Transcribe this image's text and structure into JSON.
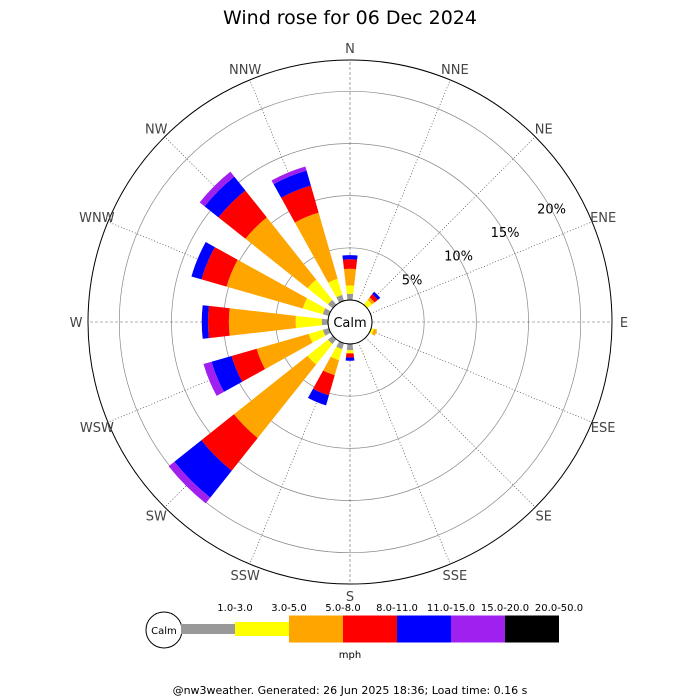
{
  "chart_data": {
    "type": "wind-rose",
    "title": "Wind rose for 06 Dec 2024",
    "directions": [
      "N",
      "NNE",
      "NE",
      "ENE",
      "E",
      "ESE",
      "SE",
      "SSE",
      "S",
      "SSW",
      "SW",
      "WSW",
      "W",
      "WNW",
      "NW",
      "NNW"
    ],
    "ring_labels": [
      "5%",
      "10%",
      "15%",
      "20%"
    ],
    "rings": [
      5,
      10,
      15,
      20
    ],
    "r_max": 23,
    "calm_label": "Calm",
    "units": "mph",
    "speed_bins": [
      {
        "label": "1.0-3.0",
        "color": "#999999"
      },
      {
        "label": "3.0-5.0",
        "color": "#ffff00"
      },
      {
        "label": "5.0-8.0",
        "color": "#ffa500"
      },
      {
        "label": "8.0-11.0",
        "color": "#ff0000"
      },
      {
        "label": "11.0-15.0",
        "color": "#0000ff"
      },
      {
        "label": "15.0-20.0",
        "color": "#a020f0"
      },
      {
        "label": "20.0-50.0",
        "color": "#000000"
      }
    ],
    "series": {
      "N": [
        0.6,
        0.8,
        1.6,
        0.9,
        0.4,
        0.0,
        0.0
      ],
      "NNE": [
        0.0,
        0.0,
        0.0,
        0.0,
        0.0,
        0.0,
        0.0
      ],
      "NE": [
        0.0,
        0.6,
        0.3,
        0.4,
        0.3,
        0.0,
        0.0
      ],
      "ENE": [
        0.0,
        0.0,
        0.0,
        0.0,
        0.0,
        0.0,
        0.0
      ],
      "E": [
        0.0,
        0.0,
        0.0,
        0.0,
        0.0,
        0.0,
        0.0
      ],
      "ESE": [
        0.0,
        0.3,
        0.3,
        0.0,
        0.0,
        0.0,
        0.0
      ],
      "SE": [
        0.0,
        0.0,
        0.0,
        0.0,
        0.0,
        0.0,
        0.0
      ],
      "SSE": [
        0.0,
        0.0,
        0.0,
        0.0,
        0.0,
        0.0,
        0.0
      ],
      "S": [
        0.6,
        0.3,
        0.0,
        0.4,
        0.3,
        0.0,
        0.0
      ],
      "SSW": [
        0.6,
        1.1,
        1.5,
        2.0,
        1.0,
        0.0,
        0.0
      ],
      "SW": [
        0.6,
        2.5,
        9.0,
        4.0,
        3.3,
        0.7,
        0.0
      ],
      "WSW": [
        0.6,
        1.4,
        5.2,
        2.5,
        2.0,
        0.8,
        0.0
      ],
      "W": [
        0.6,
        2.5,
        6.4,
        2.0,
        0.6,
        0.0,
        0.0
      ],
      "WNW": [
        0.6,
        2.0,
        7.6,
        2.5,
        1.0,
        0.0,
        0.0
      ],
      "NW": [
        0.6,
        2.5,
        7.6,
        3.3,
        1.7,
        0.6,
        0.0
      ],
      "NNW": [
        0.6,
        1.6,
        6.6,
        2.7,
        1.5,
        0.4,
        0.0
      ]
    }
  },
  "footer": "@nw3weather. Generated: 26 Jun 2025 18:36; Load time: 0.16 s"
}
